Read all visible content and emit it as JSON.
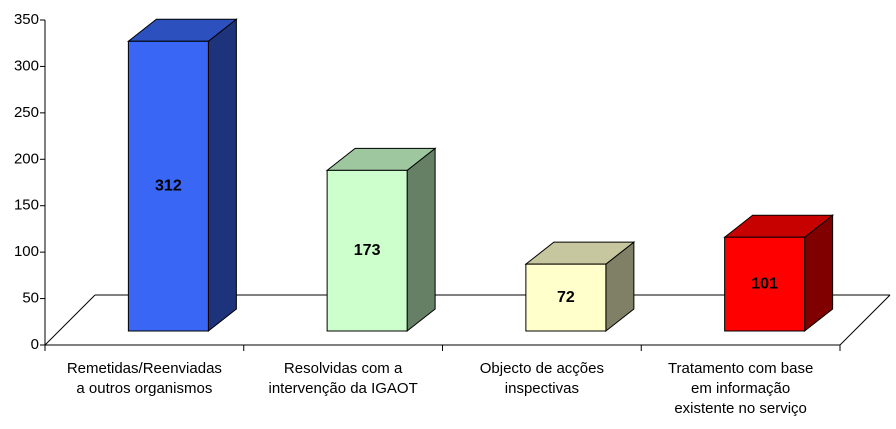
{
  "chart_data": {
    "type": "bar3d",
    "categories": [
      [
        "Remetidas/Reenviadas",
        "a outros organismos"
      ],
      [
        "Resolvidas com a",
        "intervenção da IGAOT"
      ],
      [
        "Objecto de acções",
        "inspectivas"
      ],
      [
        "Tratamento com base",
        "em informação",
        "existente no serviço"
      ]
    ],
    "values": [
      312,
      173,
      72,
      101
    ],
    "colors": [
      "#3a66f5",
      "#ccffcc",
      "#ffffcc",
      "#ff0000"
    ],
    "ylim": [
      0,
      350
    ],
    "yticks": [
      0,
      50,
      100,
      150,
      200,
      250,
      300,
      350
    ]
  }
}
